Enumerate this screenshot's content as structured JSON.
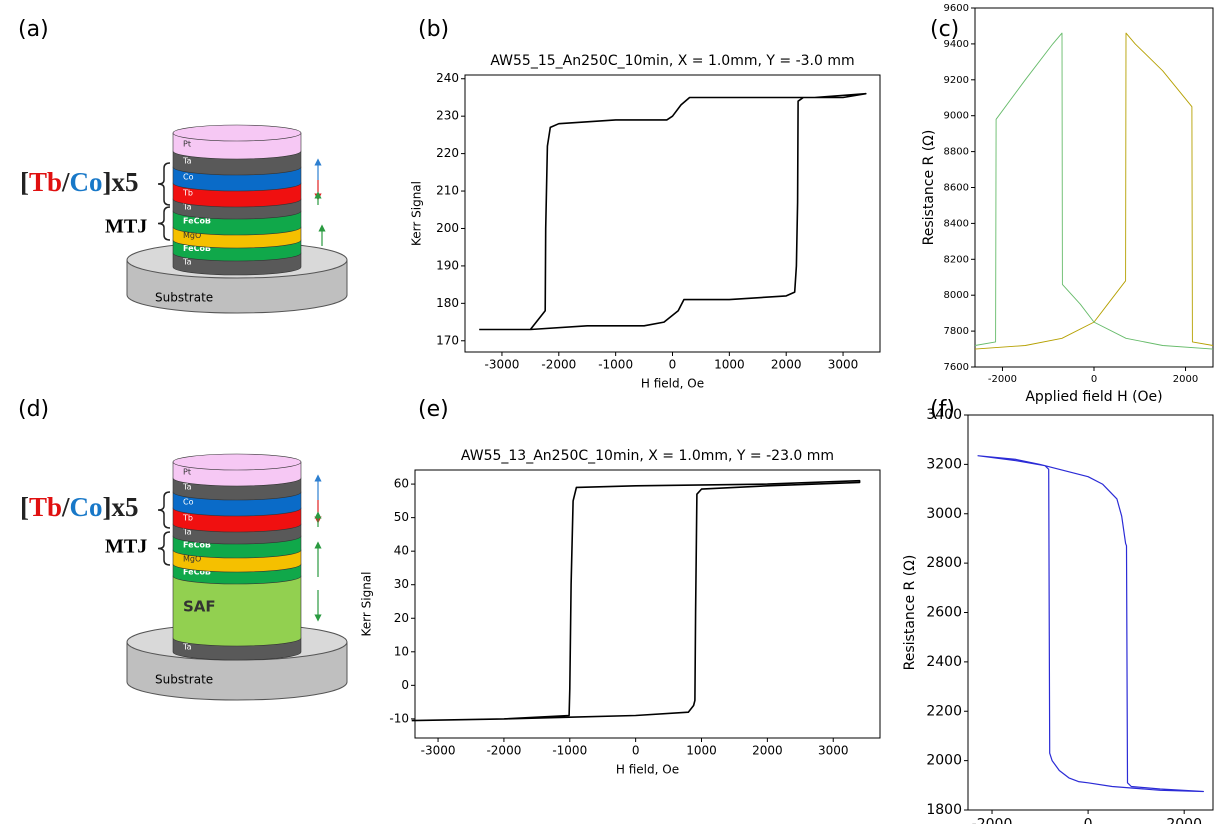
{
  "panel_labels": [
    "(a)",
    "(b)",
    "(c)",
    "(d)",
    "(e)",
    "(f)"
  ],
  "diagrams": [
    {
      "group": [
        "[",
        "Tb",
        "/",
        "Co",
        "]x5"
      ],
      "mtj": "MTJ",
      "substrate": "Substrate",
      "layers": [
        {
          "label": "Pt",
          "color": "#f6c8f4"
        },
        {
          "label": "Ta",
          "color": "#595959"
        },
        {
          "label": "Co",
          "color": "#0a6bc8"
        },
        {
          "label": "Tb",
          "color": "#f01010"
        },
        {
          "label": "Ta",
          "color": "#595959"
        },
        {
          "label": "FeCoB",
          "color": "#10a84a"
        },
        {
          "label": "MgO",
          "color": "#f5c000"
        },
        {
          "label": "FeCoB",
          "color": "#10a84a"
        },
        {
          "label": "Ta",
          "color": "#595959"
        }
      ]
    },
    {
      "group": [
        "[",
        "Tb",
        "/",
        "Co",
        "]x5"
      ],
      "mtj": "MTJ",
      "substrate": "Substrate",
      "layers": [
        {
          "label": "Pt",
          "color": "#f6c8f4"
        },
        {
          "label": "Ta",
          "color": "#595959"
        },
        {
          "label": "Co",
          "color": "#0a6bc8"
        },
        {
          "label": "Tb",
          "color": "#f01010"
        },
        {
          "label": "Ta",
          "color": "#595959"
        },
        {
          "label": "FeCoB",
          "color": "#10a84a"
        },
        {
          "label": "MgO",
          "color": "#f5c000"
        },
        {
          "label": "FeCoB",
          "color": "#10a84a"
        },
        {
          "label": "SAF",
          "color": "#92d050"
        },
        {
          "label": "Ta",
          "color": "#595959"
        }
      ]
    }
  ],
  "chart_data": [
    {
      "type": "line",
      "title": "AW55_15_An250C_10min, X = 1.0mm, Y = -3.0 mm",
      "x_label": "H field, Oe",
      "y_label": "Kerr Signal",
      "xlim": [
        -3650,
        3650
      ],
      "ylim": [
        167,
        241
      ],
      "xticks": [
        -3000,
        -2000,
        -1000,
        0,
        1000,
        2000,
        3000
      ],
      "yticks": [
        170,
        180,
        190,
        200,
        210,
        220,
        230,
        240
      ],
      "series": [
        {
          "color": "#000000",
          "x": [
            -3400,
            -2500,
            -1500,
            -500,
            -150,
            100,
            200,
            1000,
            2000,
            2150,
            2180,
            2200,
            2210,
            2300,
            3000,
            3400,
            3400,
            2500,
            1000,
            300,
            150,
            0,
            -100,
            -1000,
            -2000,
            -2150,
            -2200,
            -2230,
            -2240,
            -2500,
            -3400
          ],
          "values": [
            173,
            173,
            174,
            174,
            175,
            178,
            181,
            181,
            182,
            183,
            190,
            207,
            234,
            235,
            235,
            236,
            236,
            235,
            235,
            235,
            233,
            230,
            229,
            229,
            228,
            227,
            222,
            200,
            178,
            173,
            173
          ]
        }
      ]
    },
    {
      "type": "line",
      "x_label": "Applied field H (Oe)",
      "y_label": "Resistance R (Ω)",
      "xlim": [
        -2600,
        2600
      ],
      "ylim": [
        7600,
        9600
      ],
      "xticks": [
        -2000,
        0,
        2000
      ],
      "yticks": [
        7600,
        7800,
        8000,
        8200,
        8400,
        8600,
        8800,
        9000,
        9200,
        9400,
        9600
      ],
      "series": [
        {
          "color": "#b5a000",
          "x": [
            2600,
            2150,
            2140,
            1500,
            900,
            700,
            690,
            300,
            0,
            -700,
            -1500,
            -2600
          ],
          "values": [
            7720,
            7740,
            9050,
            9250,
            9400,
            9460,
            8080,
            7950,
            7850,
            7760,
            7720,
            7700
          ]
        },
        {
          "color": "#66bb6a",
          "x": [
            -2600,
            -2150,
            -2140,
            -1500,
            -900,
            -700,
            -690,
            -300,
            0,
            700,
            1500,
            2600
          ],
          "values": [
            7720,
            7740,
            8980,
            9200,
            9400,
            9460,
            8060,
            7950,
            7850,
            7760,
            7720,
            7700
          ]
        }
      ]
    },
    {
      "type": "line",
      "title": "AW55_13_An250C_10min, X = 1.0mm, Y = -23.0 mm",
      "x_label": "H field, Oe",
      "y_label": "Kerr Signal",
      "xlim": [
        -3350,
        3710
      ],
      "ylim": [
        -15.7,
        64.2
      ],
      "xticks": [
        -3000,
        -2000,
        -1000,
        0,
        1000,
        2000,
        3000
      ],
      "yticks": [
        -10,
        0,
        10,
        20,
        30,
        40,
        50,
        60
      ],
      "series": [
        {
          "color": "#000000",
          "x": [
            -3400,
            -2000,
            -1000,
            0,
            800,
            880,
            900,
            910,
            930,
            1000,
            2000,
            3400,
            3400,
            2000,
            0,
            -900,
            -950,
            -980,
            -1000,
            -1010,
            -2000,
            -3400
          ],
          "values": [
            -10.5,
            -10,
            -9.5,
            -9,
            -8,
            -6,
            -4.5,
            22,
            57,
            58.5,
            59.5,
            60.5,
            61,
            60,
            59.5,
            59,
            55,
            30,
            -1,
            -9,
            -10,
            -10.5
          ]
        }
      ]
    },
    {
      "type": "line",
      "x_label": "Applied field H (Oe)",
      "y_label": "Resistance R (Ω)",
      "xlim": [
        -2500,
        2600
      ],
      "ylim": [
        1800,
        3400
      ],
      "xticks": [
        -2000,
        0,
        2000
      ],
      "yticks": [
        1800,
        2000,
        2200,
        2400,
        2600,
        2800,
        3000,
        3200,
        3400
      ],
      "series": [
        {
          "color": "#2b2bd6",
          "x": [
            -2300,
            -1500,
            -1000,
            0,
            300,
            600,
            700,
            780,
            800,
            820,
            900,
            1500,
            2400,
            2400,
            1500,
            500,
            0,
            -200,
            -400,
            -600,
            -750,
            -800,
            -820,
            -900,
            -1500,
            -2300
          ],
          "values": [
            3235,
            3220,
            3200,
            3150,
            3120,
            3060,
            2990,
            2880,
            2870,
            1910,
            1895,
            1885,
            1875,
            1875,
            1880,
            1895,
            1910,
            1915,
            1930,
            1960,
            2000,
            2030,
            3180,
            3195,
            3215,
            3235
          ]
        }
      ]
    }
  ]
}
